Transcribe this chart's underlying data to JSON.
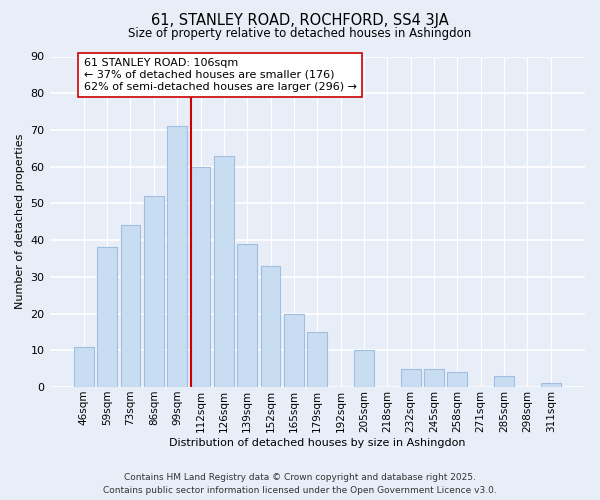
{
  "title": "61, STANLEY ROAD, ROCHFORD, SS4 3JA",
  "subtitle": "Size of property relative to detached houses in Ashingdon",
  "xlabel": "Distribution of detached houses by size in Ashingdon",
  "ylabel": "Number of detached properties",
  "categories": [
    "46sqm",
    "59sqm",
    "73sqm",
    "86sqm",
    "99sqm",
    "112sqm",
    "126sqm",
    "139sqm",
    "152sqm",
    "165sqm",
    "179sqm",
    "192sqm",
    "205sqm",
    "218sqm",
    "232sqm",
    "245sqm",
    "258sqm",
    "271sqm",
    "285sqm",
    "298sqm",
    "311sqm"
  ],
  "values": [
    11,
    38,
    44,
    52,
    71,
    60,
    63,
    39,
    33,
    20,
    15,
    0,
    10,
    0,
    5,
    5,
    4,
    0,
    3,
    0,
    1
  ],
  "bar_color": "#c9ddf2",
  "bar_edge_color": "#a0bedd",
  "vline_index": 5,
  "vline_color": "#cc0000",
  "annotation_line1": "61 STANLEY ROAD: 106sqm",
  "annotation_line2": "← 37% of detached houses are smaller (176)",
  "annotation_line3": "62% of semi-detached houses are larger (296) →",
  "annotation_box_facecolor": "#ffffff",
  "annotation_box_edgecolor": "#cc0000",
  "ylim": [
    0,
    90
  ],
  "yticks": [
    0,
    10,
    20,
    30,
    40,
    50,
    60,
    70,
    80,
    90
  ],
  "background_color": "#e8eef8",
  "grid_color": "#ffffff",
  "footer_line1": "Contains HM Land Registry data © Crown copyright and database right 2025.",
  "footer_line2": "Contains public sector information licensed under the Open Government Licence v3.0."
}
